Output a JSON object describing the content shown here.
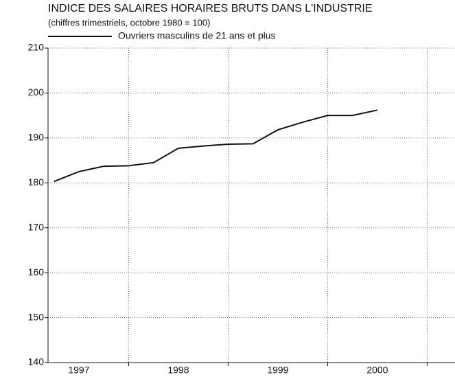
{
  "chart_data": {
    "type": "line",
    "title": "INDICE DES SALAIRES HORAIRES BRUTS DANS L'INDUSTRIE",
    "subtitle": "(chiffres trimestriels, octobre 1980 = 100)",
    "x": [
      1997.25,
      1997.5,
      1997.75,
      1998,
      1998.25,
      1998.5,
      1998.75,
      1999,
      1999.25,
      1999.5,
      1999.75,
      2000,
      2000.25,
      2000.5
    ],
    "series": [
      {
        "name": "Ouvriers masculins de 21 ans et plus",
        "color": "#111111",
        "values": [
          180.3,
          182.5,
          183.7,
          183.8,
          184.5,
          187.7,
          188.2,
          188.6,
          188.7,
          191.8,
          193.5,
          195.0,
          195.0,
          196.2
        ]
      }
    ],
    "xlim": [
      1997.19,
      2001.28
    ],
    "xticks": [
      {
        "value": 1997.5,
        "label": "1997"
      },
      {
        "value": 1998.5,
        "label": "1998"
      },
      {
        "value": 1999.5,
        "label": "1999"
      },
      {
        "value": 2000.5,
        "label": "2000"
      }
    ],
    "xgrid": [
      1998,
      1999,
      2000,
      2001
    ],
    "ylim": [
      140,
      210
    ],
    "yticks": [
      140,
      150,
      160,
      170,
      180,
      190,
      200,
      210
    ],
    "grid": true
  }
}
